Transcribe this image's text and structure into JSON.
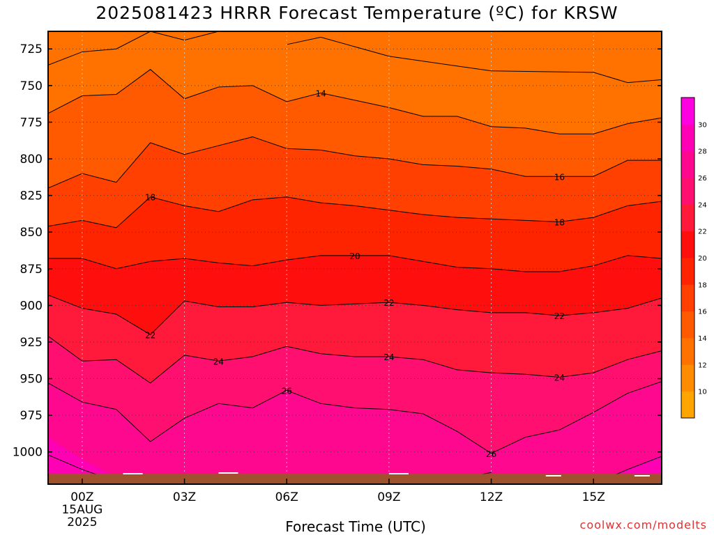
{
  "title": "2025081423 HRRR Forecast Temperature (ºC) for KRSW",
  "xlabel": "Forecast Time (UTC)",
  "watermark": "coolwx.com/modelts",
  "chart_data": {
    "type": "heatmap",
    "title": "2025081423 HRRR Forecast Temperature (ºC) for KRSW",
    "xlabel": "Forecast Time (UTC)",
    "ylabel": "",
    "x_hours": [
      -1,
      0,
      1,
      2,
      3,
      4,
      5,
      6,
      7,
      8,
      9,
      10,
      11,
      12,
      13,
      14,
      15,
      16,
      17
    ],
    "x_ticks": [
      {
        "hour": 0,
        "label": "00Z",
        "label2": "15AUG",
        "label3": "2025"
      },
      {
        "hour": 3,
        "label": "03Z"
      },
      {
        "hour": 6,
        "label": "06Z"
      },
      {
        "hour": 9,
        "label": "09Z"
      },
      {
        "hour": 12,
        "label": "12Z"
      },
      {
        "hour": 15,
        "label": "15Z"
      }
    ],
    "xlim": [
      -1,
      17
    ],
    "ylim": [
      713,
      1022
    ],
    "y_scale": "pressure",
    "y_ticks": [
      725,
      750,
      775,
      800,
      825,
      850,
      875,
      900,
      925,
      950,
      975,
      1000
    ],
    "grid": true,
    "contour_levels": [
      14,
      16,
      18,
      20,
      22,
      24,
      26
    ],
    "contours": [
      {
        "level": 14,
        "p": [
          769,
          757,
          756,
          739,
          759,
          751,
          750,
          761,
          755,
          760,
          765,
          771,
          771,
          778,
          779,
          783,
          783,
          776,
          772
        ]
      },
      {
        "level": 16,
        "p": [
          820,
          810,
          816,
          789,
          797,
          791,
          785,
          793,
          794,
          798,
          800,
          804,
          805,
          807,
          812,
          812,
          812,
          801,
          801
        ]
      },
      {
        "level": 18,
        "p": [
          846,
          842,
          847,
          826,
          832,
          836,
          828,
          826,
          830,
          832,
          835,
          838,
          840,
          841,
          842,
          843,
          840,
          832,
          829
        ]
      },
      {
        "level": 20,
        "p": [
          868,
          868,
          875,
          870,
          868,
          871,
          873,
          869,
          866,
          866,
          866,
          870,
          874,
          875,
          877,
          877,
          873,
          866,
          868
        ]
      },
      {
        "level": 22,
        "p": [
          893,
          902,
          906,
          920,
          897,
          901,
          901,
          898,
          900,
          899,
          898,
          900,
          903,
          905,
          905,
          907,
          905,
          902,
          895
        ]
      },
      {
        "level": 24,
        "p": [
          921,
          938,
          937,
          953,
          934,
          938,
          935,
          928,
          933,
          935,
          935,
          937,
          944,
          946,
          947,
          949,
          946,
          937,
          931
        ]
      },
      {
        "level": 26,
        "p": [
          953,
          966,
          971,
          993,
          977,
          967,
          970,
          958,
          967,
          970,
          971,
          974,
          986,
          1001,
          990,
          985,
          973,
          960,
          952
        ]
      }
    ],
    "contour_labels": [
      {
        "level": 14,
        "hour": 7
      },
      {
        "level": 16,
        "hour": 14
      },
      {
        "level": 18,
        "hour": 2
      },
      {
        "level": 18,
        "hour": 14
      },
      {
        "level": 20,
        "hour": 8
      },
      {
        "level": 22,
        "hour": 2
      },
      {
        "level": 22,
        "hour": 9
      },
      {
        "level": 22,
        "hour": 14
      },
      {
        "level": 24,
        "hour": 4
      },
      {
        "level": 24,
        "hour": 9
      },
      {
        "level": 24,
        "hour": 14
      },
      {
        "level": 26,
        "hour": 6
      },
      {
        "level": 26,
        "hour": 12
      }
    ],
    "colorbar": {
      "levels": [
        8,
        10,
        12,
        14,
        16,
        18,
        20,
        22,
        24,
        26,
        28,
        30,
        32
      ],
      "tick_labels": [
        10,
        12,
        14,
        16,
        18,
        20,
        22,
        24,
        26,
        28,
        30
      ],
      "colors": [
        "#ffa500",
        "#ff8c00",
        "#ff7200",
        "#ff5a00",
        "#ff4000",
        "#ff2400",
        "#ff0e0e",
        "#ff1a3c",
        "#ff1070",
        "#ff0890",
        "#ff00b4",
        "#ff00e0"
      ]
    },
    "ground_color": "#a0522d"
  }
}
